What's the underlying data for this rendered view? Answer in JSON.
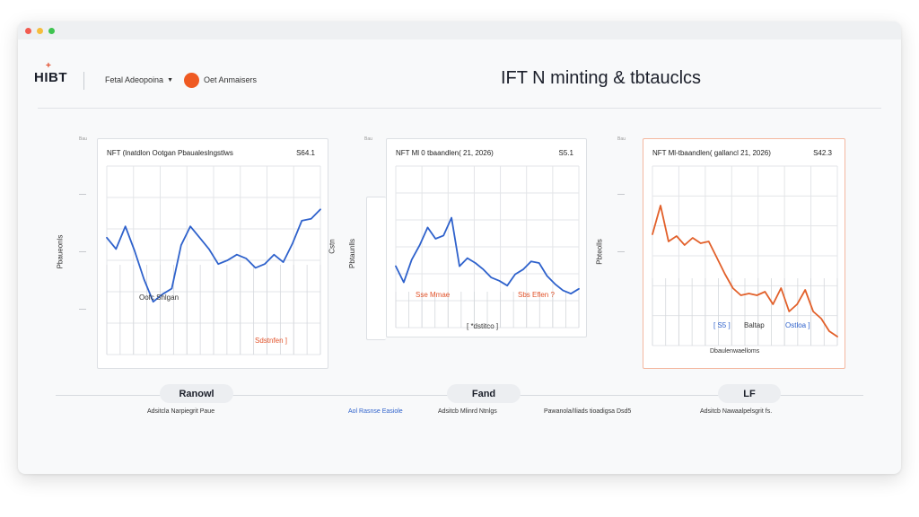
{
  "header": {
    "logo": "HIBT",
    "dropdown_label": "Fetal Adeopoina",
    "status_label": "Oet Anmaisers",
    "title": "IFT N minting & tbtauclcs"
  },
  "panels": [
    {
      "title": "NFT (lnatdlon Ootgan Pbaualeslngstlws",
      "value": "S64.1",
      "side_label": "Pbaueonls",
      "outer_tick": "Bau",
      "notes": [
        {
          "text": "Oofc Shlgan",
          "color": "dark"
        },
        {
          "text": "Sdstnfen ]",
          "color": "orange"
        }
      ]
    },
    {
      "title": "NFT Ml 0 tbaandlen( 21, 2026)",
      "value": "S5.1",
      "side_label": "Pbtaunlls",
      "side_label_2": "Cstn",
      "outer_tick": "Bau",
      "notes": [
        {
          "text": "Sse Mmae",
          "color": "orange"
        },
        {
          "text": "Sbs Eflen ?",
          "color": "orange"
        },
        {
          "text": "[ *dstitco ]",
          "color": "dark"
        }
      ]
    },
    {
      "title": "NFT Ml-tbaandlen( gallancl 21, 2026)",
      "value": "S42.3",
      "side_label": "Pbteolls",
      "outer_tick": "Bau",
      "notes": [
        {
          "text": "[ S5 ]",
          "color": "blue"
        },
        {
          "text": "Baltap",
          "color": "dark"
        },
        {
          "text": "Ostloa ]",
          "color": "blue"
        },
        {
          "text": "Dbaulenwaelloms",
          "color": "dark"
        }
      ]
    }
  ],
  "tabs": [
    {
      "label": "Ranowl"
    },
    {
      "label": "Fand"
    },
    {
      "label": "LF"
    }
  ],
  "footer": [
    {
      "text": "Adsitcla Narpiegrit Paue",
      "color": "dark"
    },
    {
      "text": "Aol Rasnse Easiole",
      "color": "blue"
    },
    {
      "text": "Adsitcb Mlinrd Ntnlgs",
      "color": "dark"
    },
    {
      "text": "Pawanola/Iliads tioadigsa Dsd5",
      "color": "dark"
    },
    {
      "text": "Adsitcb Nawaalpelsgrit fs.",
      "color": "dark"
    }
  ],
  "colors": {
    "blue": "#2f62cc",
    "orange": "#e2602a",
    "status": "#ef5a22"
  },
  "chart_data": [
    {
      "type": "line",
      "title": "NFT (lnatdlon Ootgan Pbaualeslngstlws",
      "series": [
        {
          "values": [
            62,
            56,
            68,
            55,
            40,
            28,
            32,
            35,
            58,
            68,
            62,
            56,
            48,
            50,
            53,
            51,
            46,
            48,
            53,
            49,
            59,
            71,
            72,
            77
          ]
        }
      ],
      "ylim": [
        0,
        100
      ]
    },
    {
      "type": "line",
      "title": "NFT Ml 0 tbaandlen( 21, 2026)",
      "series": [
        {
          "values": [
            38,
            28,
            42,
            51,
            62,
            55,
            57,
            68,
            38,
            43,
            40,
            36,
            31,
            29,
            26,
            33,
            36,
            41,
            40,
            32,
            27,
            23,
            21,
            24
          ]
        }
      ],
      "ylim": [
        0,
        100
      ]
    },
    {
      "type": "line",
      "title": "NFT Ml-tbaandlen( gallancl 21, 2026)",
      "series": [
        {
          "values": [
            62,
            78,
            58,
            61,
            56,
            60,
            57,
            58,
            49,
            40,
            32,
            28,
            29,
            28,
            30,
            23,
            32,
            19,
            23,
            31,
            19,
            15,
            8,
            5
          ]
        }
      ],
      "ylim": [
        0,
        100
      ]
    }
  ]
}
